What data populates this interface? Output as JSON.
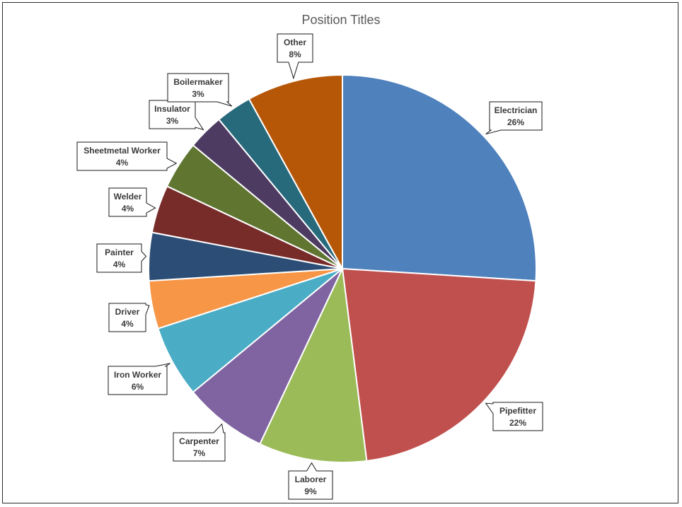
{
  "chart_data": {
    "type": "pie",
    "title": "Position Titles",
    "slices": [
      {
        "label": "Electrician",
        "value": 26,
        "value_label": "26%",
        "color": "#4F81BD"
      },
      {
        "label": "Pipefitter",
        "value": 22,
        "value_label": "22%",
        "color": "#C0504D"
      },
      {
        "label": "Laborer",
        "value": 9,
        "value_label": "9%",
        "color": "#9BBB59"
      },
      {
        "label": "Carpenter",
        "value": 7,
        "value_label": "7%",
        "color": "#8064A2"
      },
      {
        "label": "Iron Worker",
        "value": 6,
        "value_label": "6%",
        "color": "#4BACC6"
      },
      {
        "label": "Driver",
        "value": 4,
        "value_label": "4%",
        "color": "#F79646"
      },
      {
        "label": "Painter",
        "value": 4,
        "value_label": "4%",
        "color": "#2C4D75"
      },
      {
        "label": "Welder",
        "value": 4,
        "value_label": "4%",
        "color": "#772C2A"
      },
      {
        "label": "Sheetmetal Worker",
        "value": 4,
        "value_label": "4%",
        "color": "#5F7530"
      },
      {
        "label": "Insulator",
        "value": 3,
        "value_label": "3%",
        "color": "#4D3B62"
      },
      {
        "label": "Boilermaker",
        "value": 3,
        "value_label": "3%",
        "color": "#276A7C"
      },
      {
        "label": "Other",
        "value": 8,
        "value_label": "8%",
        "color": "#B65708"
      }
    ],
    "legend": "none",
    "data_labels": "callouts"
  }
}
